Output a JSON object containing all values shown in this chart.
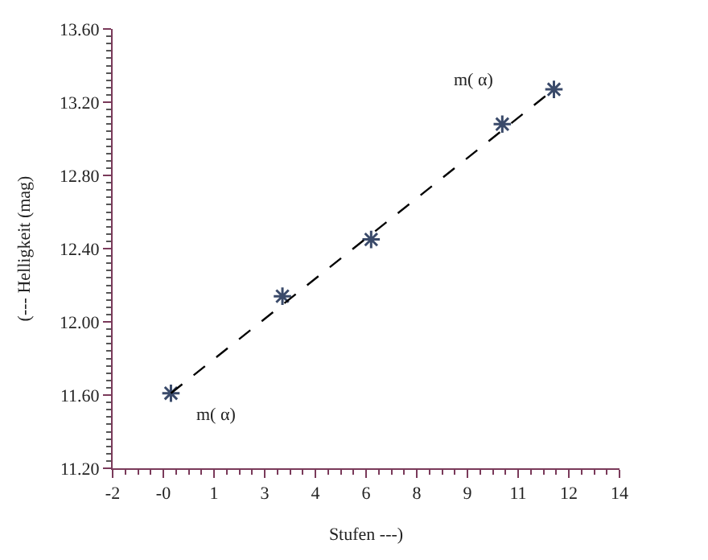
{
  "chart_data": {
    "type": "scatter",
    "xlabel": "Stufen ---)",
    "ylabel": "(--- Helligkeit (mag)",
    "xlim": [
      -2,
      14
    ],
    "ylim": [
      11.2,
      13.6
    ],
    "xticks": [
      -2,
      {
        "value": -0.4,
        "label": "-0"
      },
      {
        "value": 1.2,
        "label": "1"
      },
      {
        "value": 2.8,
        "label": "3"
      },
      {
        "value": 4.4,
        "label": "4"
      },
      6,
      {
        "value": 7.6,
        "label": "8"
      },
      {
        "value": 9.2,
        "label": "9"
      },
      {
        "value": 10.8,
        "label": "11"
      },
      {
        "value": 12.4,
        "label": "12"
      },
      14
    ],
    "yticks": [
      {
        "value": 11.2,
        "label": "11.20"
      },
      {
        "value": 11.6,
        "label": "11.60"
      },
      {
        "value": 12.0,
        "label": "12.00"
      },
      {
        "value": 12.4,
        "label": "12.40"
      },
      {
        "value": 12.8,
        "label": "12.80"
      },
      {
        "value": 13.2,
        "label": "13.20"
      },
      {
        "value": 13.6,
        "label": "13.60"
      }
    ],
    "series": [
      {
        "marker": "cross",
        "color": "#3a4a6a",
        "x": [
          -0.16,
          3.36,
          6.16,
          10.3,
          11.93
        ],
        "values": [
          11.61,
          12.14,
          12.45,
          13.08,
          13.27
        ]
      },
      {
        "type": "line",
        "line_style": "dashed",
        "marker": "none",
        "color": "#000000",
        "x": [
          -0.16,
          11.93
        ],
        "values": [
          11.61,
          13.27
        ]
      }
    ],
    "annotations": [
      "m( α)",
      "m( α)"
    ]
  }
}
